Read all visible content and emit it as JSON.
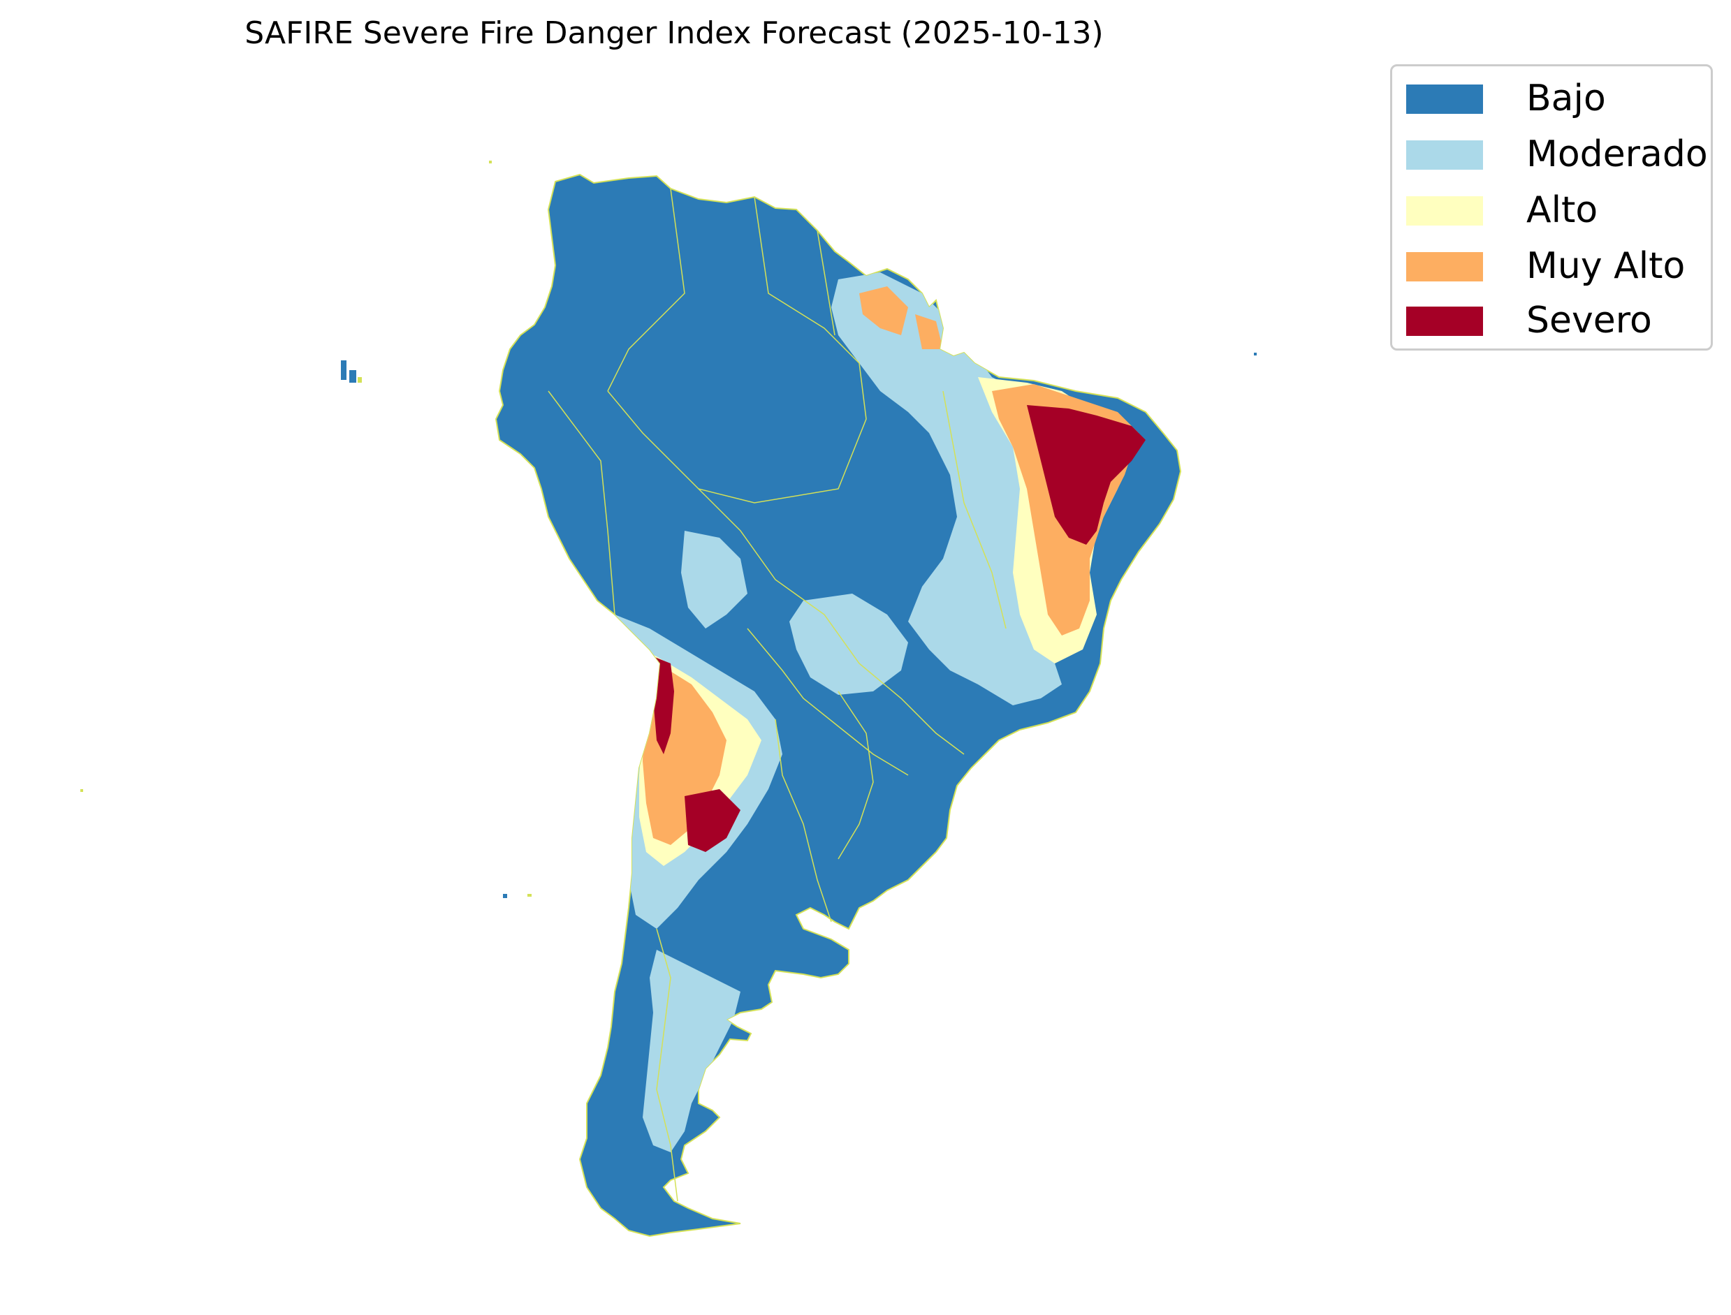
{
  "title": "SAFIRE Severe Fire Danger Index Forecast (2025-10-13)",
  "legend": {
    "placement": "top-right",
    "items": [
      {
        "label": "Bajo",
        "color": "#2c7bb6"
      },
      {
        "label": "Moderado",
        "color": "#abd9e9"
      },
      {
        "label": "Alto",
        "color": "#ffffbf"
      },
      {
        "label": "Muy Alto",
        "color": "#fdae61"
      },
      {
        "label": "Severo",
        "color": "#a50026"
      }
    ]
  },
  "map": {
    "region": "South America",
    "border_color": "#d4e157",
    "classes_present": [
      "Bajo",
      "Moderado",
      "Alto",
      "Muy Alto",
      "Severo"
    ]
  }
}
